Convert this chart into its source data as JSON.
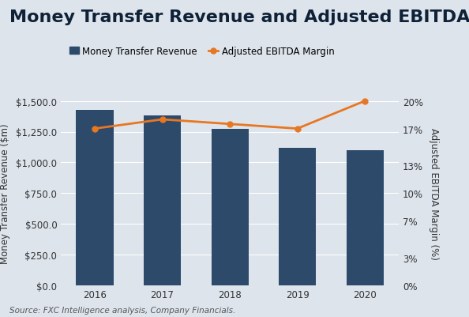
{
  "title": "Money Transfer Revenue and Adjusted EBITDA Margin",
  "years": [
    2016,
    2017,
    2018,
    2019,
    2020
  ],
  "revenue": [
    1430,
    1380,
    1270,
    1120,
    1100
  ],
  "margin": [
    17.0,
    18.0,
    17.5,
    17.0,
    20.0
  ],
  "bar_color": "#2d4a6b",
  "line_color": "#e87722",
  "bg_color": "#dde4ec",
  "ylabel_left": "Money Transfer Revenue ($m)",
  "ylabel_right": "Adjusted EBITDA Margin (%)",
  "legend_bar": "Money Transfer Revenue",
  "legend_line": "Adjusted EBITDA Margin",
  "source": "Source: FXC Intelligence analysis, Company Financials.",
  "ylim_left": [
    0,
    1500
  ],
  "ylim_right": [
    0,
    20
  ],
  "yticks_left": [
    0,
    250,
    500,
    750,
    1000,
    1250,
    1500
  ],
  "yticks_right": [
    0,
    3,
    7,
    10,
    13,
    17,
    20
  ],
  "title_fontsize": 16,
  "title_color": "#0f2137",
  "axis_fontsize": 8.5,
  "tick_fontsize": 8.5,
  "legend_fontsize": 8.5,
  "source_fontsize": 7.5
}
